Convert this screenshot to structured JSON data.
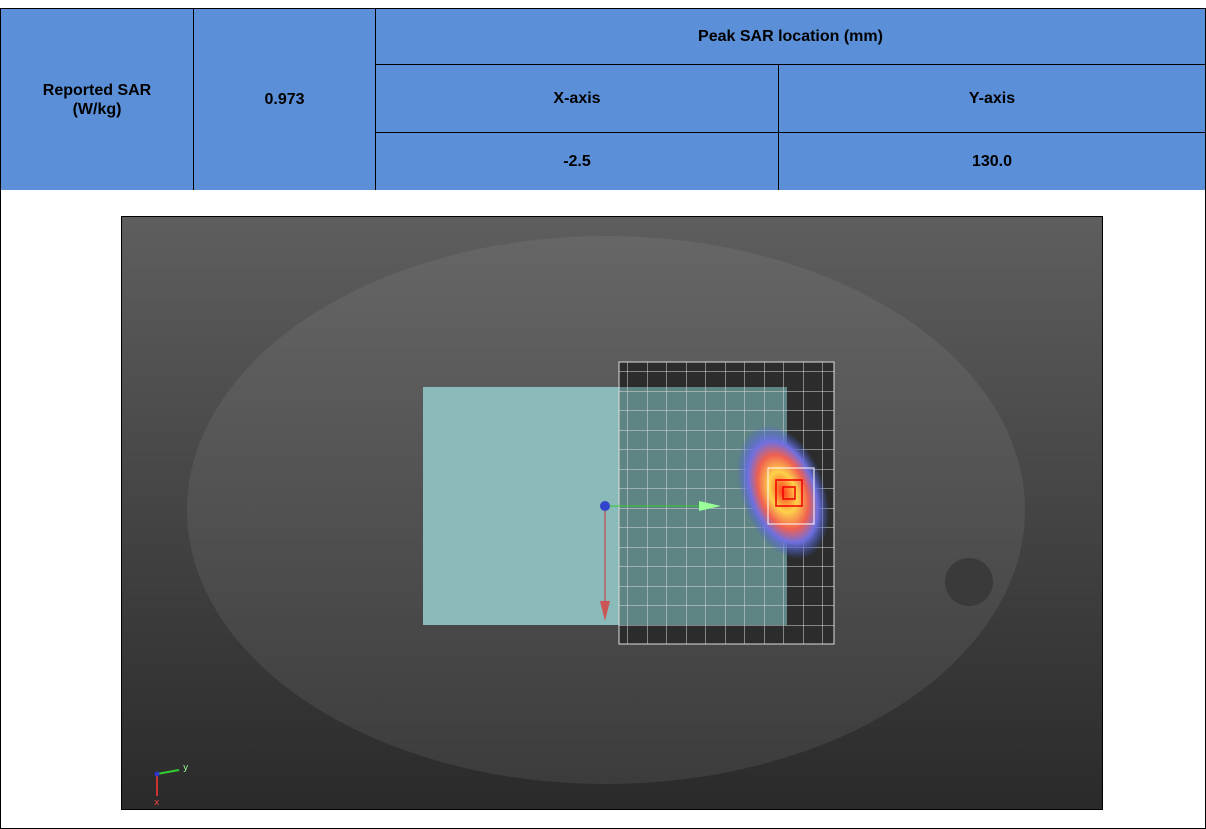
{
  "table": {
    "header_label": "Reported SAR (W/kg)",
    "value": "0.973",
    "peak_header": "Peak SAR location (mm)",
    "columns": [
      "X-axis",
      "Y-axis"
    ],
    "values": [
      "-2.5",
      "130.0"
    ]
  },
  "image": {
    "axis_labels": [
      "y",
      "x"
    ]
  }
}
